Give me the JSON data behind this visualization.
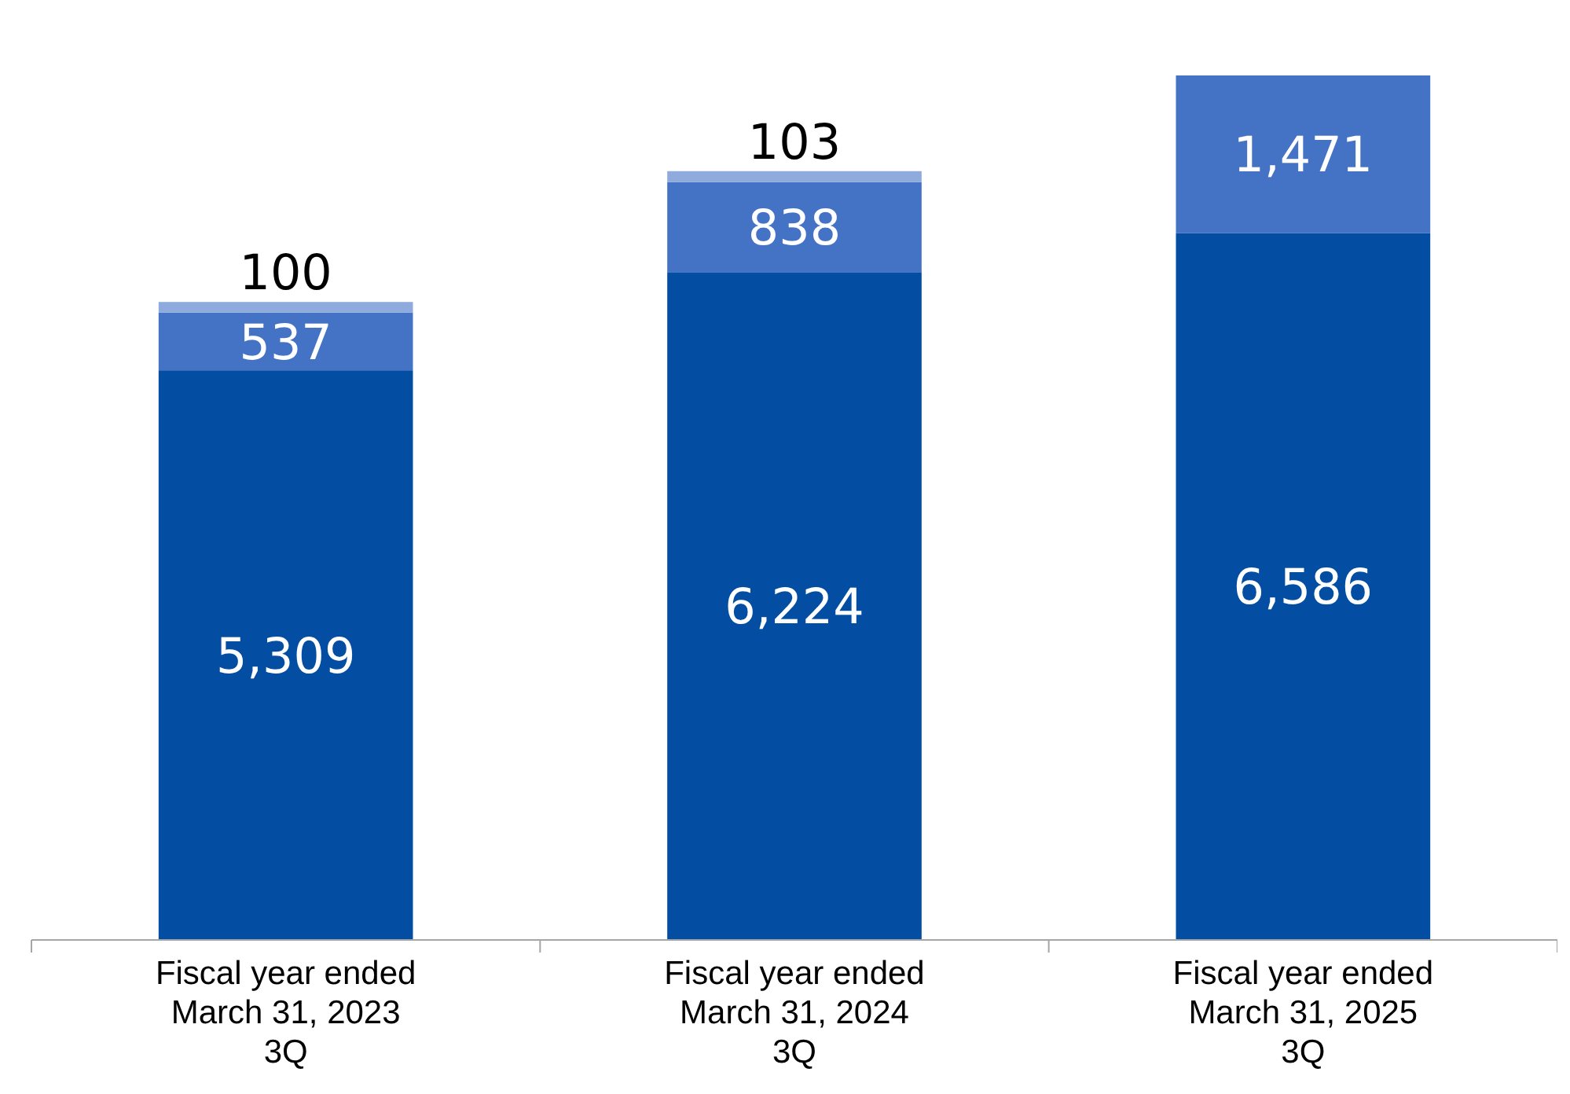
{
  "chart_data": {
    "type": "bar",
    "stacked": true,
    "tick_labels": "x",
    "categories": [
      "Fiscal year ended\nMarch 31, 2023\n3Q",
      "Fiscal year ended\nMarch 31, 2024\n3Q",
      "Fiscal year ended\nMarch 31, 2025\n3Q"
    ],
    "series": [
      {
        "color": "#034ea2",
        "values": [
          5309,
          6224,
          6586
        ],
        "value_labels": [
          "5,309",
          "6,224",
          "6,586"
        ]
      },
      {
        "color": "#4472c4",
        "values": [
          537,
          838,
          1471
        ],
        "value_labels": [
          "537",
          "838",
          "1,471"
        ]
      },
      {
        "color": "#8faadc",
        "values": [
          100,
          103,
          null
        ],
        "value_labels": [
          "100",
          "103",
          null
        ]
      }
    ]
  }
}
